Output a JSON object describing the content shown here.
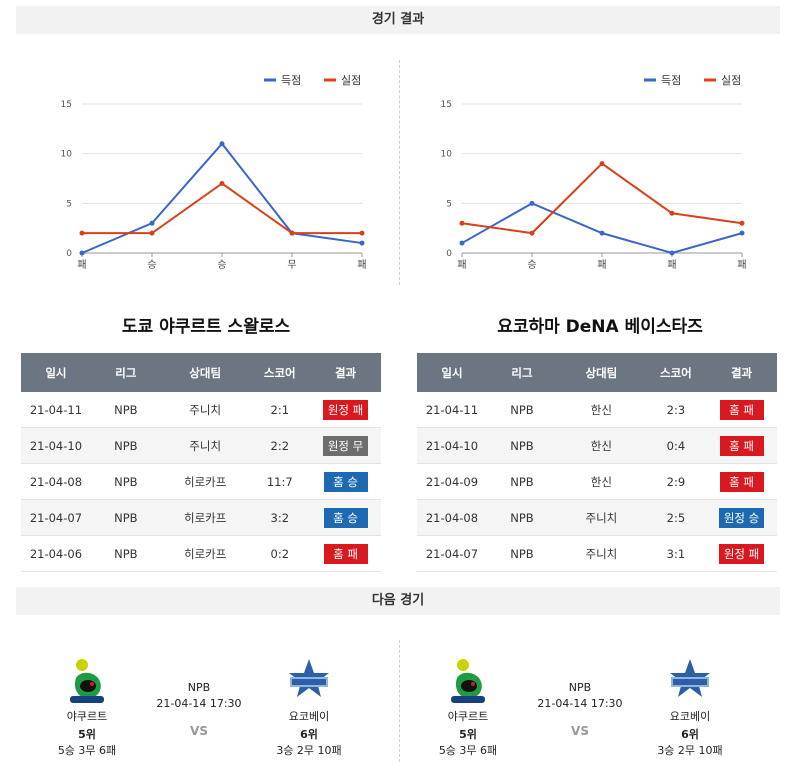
{
  "sections": {
    "results_title": "경기 결과",
    "next_title": "다음 경기"
  },
  "legend": {
    "scored": "득점",
    "conceded": "실점"
  },
  "colors": {
    "scored": "#3a66c9",
    "conceded": "#d9401a",
    "loss": "#d9181f",
    "win": "#1d6ab2",
    "draw": "#6d6d6d"
  },
  "chart_data": [
    {
      "type": "line",
      "x": [
        "패",
        "승",
        "승",
        "무",
        "패"
      ],
      "yticks": [
        0,
        5,
        10,
        15
      ],
      "ylim": [
        0,
        15
      ],
      "grid": true,
      "legend_position": "top-right",
      "series": [
        {
          "name": "득점",
          "values": [
            0,
            3,
            11,
            2,
            1
          ]
        },
        {
          "name": "실점",
          "values": [
            2,
            2,
            7,
            2,
            2
          ]
        }
      ]
    },
    {
      "type": "line",
      "x": [
        "패",
        "승",
        "패",
        "패",
        "패"
      ],
      "yticks": [
        0,
        5,
        10,
        15
      ],
      "ylim": [
        0,
        15
      ],
      "grid": true,
      "legend_position": "top-right",
      "series": [
        {
          "name": "득점",
          "values": [
            1,
            5,
            2,
            0,
            2
          ]
        },
        {
          "name": "실점",
          "values": [
            3,
            2,
            9,
            4,
            3
          ]
        }
      ]
    }
  ],
  "tables": {
    "headers": [
      "일시",
      "리그",
      "상대팀",
      "스코어",
      "결과"
    ],
    "left": {
      "team": "도쿄 야쿠르트 스왈로스",
      "rows": [
        {
          "date": "21-04-11",
          "league": "NPB",
          "opponent": "주니치",
          "score": "2:1",
          "result": "원정 패",
          "kind": "loss"
        },
        {
          "date": "21-04-10",
          "league": "NPB",
          "opponent": "주니치",
          "score": "2:2",
          "result": "원정 무",
          "kind": "draw"
        },
        {
          "date": "21-04-08",
          "league": "NPB",
          "opponent": "히로카프",
          "score": "11:7",
          "result": "홈 승",
          "kind": "win"
        },
        {
          "date": "21-04-07",
          "league": "NPB",
          "opponent": "히로카프",
          "score": "3:2",
          "result": "홈 승",
          "kind": "win"
        },
        {
          "date": "21-04-06",
          "league": "NPB",
          "opponent": "히로카프",
          "score": "0:2",
          "result": "홈 패",
          "kind": "loss"
        }
      ]
    },
    "right": {
      "team": "요코하마 DeNA 베이스타즈",
      "rows": [
        {
          "date": "21-04-11",
          "league": "NPB",
          "opponent": "한신",
          "score": "2:3",
          "result": "홈 패",
          "kind": "loss"
        },
        {
          "date": "21-04-10",
          "league": "NPB",
          "opponent": "한신",
          "score": "0:4",
          "result": "홈 패",
          "kind": "loss"
        },
        {
          "date": "21-04-09",
          "league": "NPB",
          "opponent": "한신",
          "score": "2:9",
          "result": "홈 패",
          "kind": "loss"
        },
        {
          "date": "21-04-08",
          "league": "NPB",
          "opponent": "주니치",
          "score": "2:5",
          "result": "원정 승",
          "kind": "win"
        },
        {
          "date": "21-04-07",
          "league": "NPB",
          "opponent": "주니치",
          "score": "3:1",
          "result": "원정 패",
          "kind": "loss"
        }
      ]
    }
  },
  "next_games": [
    {
      "home": {
        "name": "야쿠르트",
        "rank": "5위",
        "record": "5승 3무 6패",
        "logo": "yakult-swallows-logo"
      },
      "league": "NPB",
      "datetime": "21-04-14 17:30",
      "vs": "VS",
      "away": {
        "name": "요코베이",
        "rank": "6위",
        "record": "3승 2무 10패",
        "logo": "baystars-logo"
      }
    },
    {
      "home": {
        "name": "야쿠르트",
        "rank": "5위",
        "record": "5승 3무 6패",
        "logo": "yakult-swallows-logo"
      },
      "league": "NPB",
      "datetime": "21-04-14 17:30",
      "vs": "VS",
      "away": {
        "name": "요코베이",
        "rank": "6위",
        "record": "3승 2무 10패",
        "logo": "baystars-logo"
      }
    }
  ]
}
